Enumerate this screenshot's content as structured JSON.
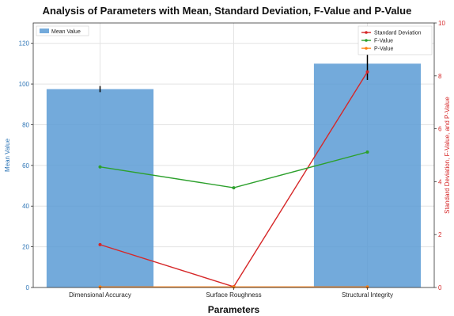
{
  "chart_data": {
    "type": "bar",
    "title": "Analysis of Parameters with Mean, Standard Deviation, F-Value and P-Value",
    "xlabel": "Parameters",
    "ylabel_left": "Mean Value",
    "ylabel_right": "Standard Deviation, F-Value, and P-Value",
    "categories": [
      "Dimensional Accuracy",
      "Surface Roughness",
      "Structural Integrity"
    ],
    "ylim_left": [
      0,
      130
    ],
    "ylim_right": [
      0,
      10
    ],
    "yticks_left": [
      "0",
      "20",
      "40",
      "60",
      "80",
      "100",
      "120"
    ],
    "yticks_right": [
      "0",
      "2",
      "4",
      "6",
      "8",
      "10"
    ],
    "grid": true,
    "series": [
      {
        "name": "Mean Value",
        "type": "bar",
        "axis": "left",
        "values": [
          97.5,
          0.4,
          110
        ],
        "error": [
          1.5,
          0,
          8
        ],
        "color": "#5b9bd5"
      },
      {
        "name": "Standard Deviation",
        "type": "line",
        "axis": "right",
        "values": [
          1.62,
          0.03,
          8.15
        ],
        "color": "#d62728"
      },
      {
        "name": "F-Value",
        "type": "line",
        "axis": "right",
        "values": [
          4.56,
          3.77,
          5.12
        ],
        "color": "#2ca02c"
      },
      {
        "name": "P-Value",
        "type": "line",
        "axis": "right",
        "values": [
          0.02,
          0.02,
          0.02
        ],
        "color": "#ff7f0e"
      }
    ],
    "legend_left": "top-left",
    "legend_right": "top-right"
  }
}
